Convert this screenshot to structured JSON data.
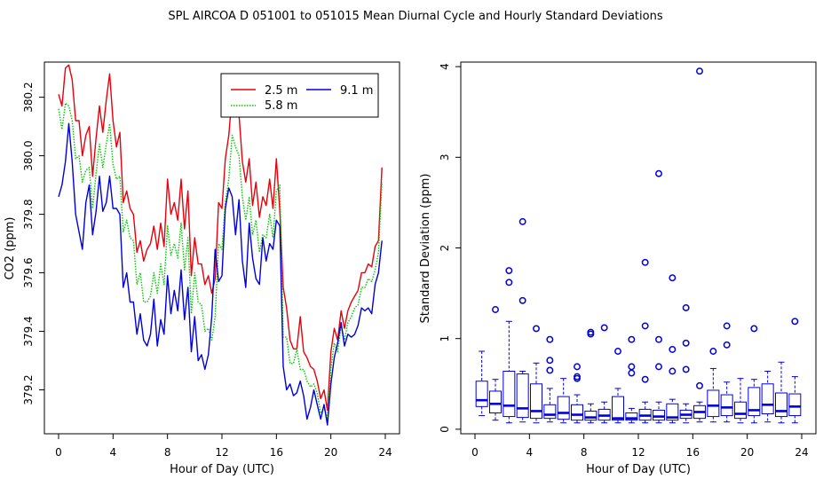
{
  "figure": {
    "title": "SPL   AIRCOA D   051001 to 051015   Mean Diurnal Cycle and Hourly Standard Deviations"
  },
  "chart_data": [
    {
      "type": "line",
      "xlabel": "Hour of Day (UTC)",
      "ylabel": "CO2 (ppm)",
      "xlim": [
        0,
        24
      ],
      "ylim": [
        379.05,
        380.32
      ],
      "xticks": [
        "0",
        "4",
        "8",
        "12",
        "16",
        "20",
        "24"
      ],
      "yticks": [
        "379.2",
        "379.4",
        "379.6",
        "379.8",
        "380.0",
        "380.2"
      ],
      "legend": {
        "position": "top-right"
      },
      "x": [
        0,
        0.25,
        0.5,
        0.75,
        1,
        1.25,
        1.5,
        1.75,
        2,
        2.25,
        2.5,
        2.75,
        3,
        3.25,
        3.5,
        3.75,
        4,
        4.25,
        4.5,
        4.75,
        5,
        5.25,
        5.5,
        5.75,
        6,
        6.25,
        6.5,
        6.75,
        7,
        7.25,
        7.5,
        7.75,
        8,
        8.25,
        8.5,
        8.75,
        9,
        9.25,
        9.5,
        9.75,
        10,
        10.25,
        10.5,
        10.75,
        11,
        11.25,
        11.5,
        11.75,
        12,
        12.25,
        12.5,
        12.75,
        13,
        13.25,
        13.5,
        13.75,
        14,
        14.25,
        14.5,
        14.75,
        15,
        15.25,
        15.5,
        15.75,
        16,
        16.25,
        16.5,
        16.75,
        17,
        17.25,
        17.5,
        17.75,
        18,
        18.25,
        18.5,
        18.75,
        19,
        19.25,
        19.5,
        19.75,
        20,
        20.25,
        20.5,
        20.75,
        21,
        21.25,
        21.5,
        21.75,
        22,
        22.25,
        22.5,
        22.75,
        23,
        23.25,
        23.5,
        23.75
      ],
      "series": [
        {
          "name": "2.5 m",
          "color": "#e8000b",
          "dash": "solid",
          "values": [
            380.21,
            380.17,
            380.3,
            380.31,
            380.26,
            380.12,
            380.12,
            380.0,
            380.07,
            380.1,
            379.93,
            380.06,
            380.17,
            380.08,
            380.19,
            380.28,
            380.12,
            380.03,
            380.08,
            379.84,
            379.88,
            379.82,
            379.8,
            379.67,
            379.71,
            379.64,
            379.68,
            379.7,
            379.76,
            379.68,
            379.77,
            379.69,
            379.92,
            379.8,
            379.84,
            379.78,
            379.92,
            379.75,
            379.88,
            379.59,
            379.72,
            379.63,
            379.63,
            379.56,
            379.59,
            379.53,
            379.58,
            379.84,
            379.82,
            379.99,
            380.07,
            380.21,
            380.16,
            380.14,
            379.98,
            379.91,
            379.99,
            379.83,
            379.91,
            379.79,
            379.86,
            379.83,
            379.92,
            379.82,
            379.99,
            379.81,
            379.55,
            379.48,
            379.37,
            379.34,
            379.34,
            379.45,
            379.33,
            379.31,
            379.28,
            379.27,
            379.23,
            379.17,
            379.2,
            379.13,
            379.33,
            379.41,
            379.37,
            379.47,
            379.41,
            379.47,
            379.5,
            379.52,
            379.54,
            379.6,
            379.6,
            379.63,
            379.62,
            379.69,
            379.71,
            379.96
          ]
        },
        {
          "name": "5.8 m",
          "color": "#00c800",
          "dash": "dotted",
          "values": [
            380.16,
            380.09,
            380.18,
            380.17,
            380.12,
            379.99,
            380.0,
            379.91,
            379.95,
            379.96,
            379.82,
            379.94,
            380.04,
            379.96,
            380.04,
            380.11,
            379.97,
            379.92,
            379.93,
            379.74,
            379.78,
            379.72,
            379.71,
            379.56,
            379.6,
            379.5,
            379.5,
            379.52,
            379.6,
            379.53,
            379.63,
            379.56,
            379.76,
            379.66,
            379.7,
            379.65,
            379.77,
            379.61,
            379.72,
            379.46,
            379.6,
            379.5,
            379.49,
            379.4,
            379.41,
            379.37,
            379.45,
            379.7,
            379.68,
            379.84,
            379.92,
            380.07,
            380.03,
            380.0,
            379.86,
            379.78,
            379.86,
            379.73,
            379.78,
            379.67,
            379.73,
            379.72,
            379.8,
            379.72,
            379.88,
            379.9,
            379.38,
            379.38,
            379.29,
            379.29,
            379.34,
            379.27,
            379.27,
            379.23,
            379.21,
            379.22,
            379.19,
            379.12,
            379.14,
            379.1,
            379.27,
            379.36,
            379.33,
            379.42,
            379.37,
            379.43,
            379.45,
            379.48,
            379.49,
            379.55,
            379.55,
            379.58,
            379.57,
            379.61,
            379.67,
            379.91
          ]
        },
        {
          "name": "9.1 m",
          "color": "#0000dc",
          "dash": "solid",
          "values": [
            379.86,
            379.9,
            379.98,
            380.11,
            379.98,
            379.8,
            379.74,
            379.68,
            379.84,
            379.9,
            379.73,
            379.81,
            379.93,
            379.81,
            379.84,
            379.93,
            379.82,
            379.82,
            379.8,
            379.55,
            379.6,
            379.5,
            379.5,
            379.39,
            379.46,
            379.37,
            379.35,
            379.39,
            379.51,
            379.35,
            379.44,
            379.39,
            379.59,
            379.46,
            379.54,
            379.47,
            379.61,
            379.44,
            379.55,
            379.33,
            379.45,
            379.3,
            379.32,
            379.27,
            379.32,
            379.45,
            379.68,
            379.57,
            379.59,
            379.82,
            379.89,
            379.86,
            379.73,
            379.85,
            379.64,
            379.55,
            379.77,
            379.65,
            379.58,
            379.56,
            379.72,
            379.64,
            379.7,
            379.68,
            379.78,
            379.76,
            379.28,
            379.2,
            379.22,
            379.18,
            379.19,
            379.23,
            379.18,
            379.1,
            379.14,
            379.2,
            379.15,
            379.1,
            379.15,
            379.08,
            379.22,
            379.31,
            379.36,
            379.43,
            379.35,
            379.39,
            379.38,
            379.39,
            379.42,
            379.48,
            379.47,
            379.48,
            379.46,
            379.56,
            379.6,
            379.71
          ]
        }
      ]
    },
    {
      "type": "box",
      "xlabel": "Hour of Day (UTC)",
      "ylabel": "Standard Deviation (ppm)",
      "xlim": [
        0,
        24
      ],
      "ylim": [
        -0.05,
        4.05
      ],
      "xticks": [
        "0",
        "4",
        "8",
        "12",
        "16",
        "20",
        "24"
      ],
      "yticks": [
        "0",
        "1",
        "2",
        "3",
        "4"
      ],
      "color": "#0000dc",
      "boxes": [
        {
          "hour": 0.5,
          "lo": 0.15,
          "q1": 0.25,
          "med": 0.32,
          "q3": 0.53,
          "hi": 0.86,
          "out": []
        },
        {
          "hour": 1.5,
          "lo": 0.1,
          "q1": 0.18,
          "med": 0.28,
          "q3": 0.42,
          "hi": 0.55,
          "out": [
            1.32
          ]
        },
        {
          "hour": 2.5,
          "lo": 0.07,
          "q1": 0.14,
          "med": 0.26,
          "q3": 0.64,
          "hi": 1.19,
          "out": [
            1.62,
            1.75
          ]
        },
        {
          "hour": 3.5,
          "lo": 0.08,
          "q1": 0.13,
          "med": 0.23,
          "q3": 0.61,
          "hi": 0.64,
          "out": [
            1.42,
            2.29
          ]
        },
        {
          "hour": 4.5,
          "lo": 0.07,
          "q1": 0.12,
          "med": 0.2,
          "q3": 0.5,
          "hi": 0.73,
          "out": [
            1.11
          ]
        },
        {
          "hour": 5.5,
          "lo": 0.08,
          "q1": 0.12,
          "med": 0.16,
          "q3": 0.27,
          "hi": 0.45,
          "out": [
            0.65,
            0.76,
            0.99
          ]
        },
        {
          "hour": 6.5,
          "lo": 0.07,
          "q1": 0.11,
          "med": 0.18,
          "q3": 0.36,
          "hi": 0.56,
          "out": []
        },
        {
          "hour": 7.5,
          "lo": 0.07,
          "q1": 0.1,
          "med": 0.16,
          "q3": 0.27,
          "hi": 0.38,
          "out": [
            0.56,
            0.58,
            0.69
          ]
        },
        {
          "hour": 8.5,
          "lo": 0.07,
          "q1": 0.1,
          "med": 0.13,
          "q3": 0.2,
          "hi": 0.28,
          "out": [
            1.05,
            1.07
          ]
        },
        {
          "hour": 9.5,
          "lo": 0.07,
          "q1": 0.1,
          "med": 0.15,
          "q3": 0.22,
          "hi": 0.3,
          "out": [
            1.12
          ]
        },
        {
          "hour": 10.5,
          "lo": 0.07,
          "q1": 0.1,
          "med": 0.12,
          "q3": 0.36,
          "hi": 0.45,
          "out": [
            0.86
          ]
        },
        {
          "hour": 11.5,
          "lo": 0.07,
          "q1": 0.1,
          "med": 0.12,
          "q3": 0.18,
          "hi": 0.23,
          "out": [
            0.62,
            0.69,
            0.99
          ]
        },
        {
          "hour": 12.5,
          "lo": 0.07,
          "q1": 0.1,
          "med": 0.15,
          "q3": 0.22,
          "hi": 0.3,
          "out": [
            0.55,
            1.14,
            1.84
          ]
        },
        {
          "hour": 13.5,
          "lo": 0.07,
          "q1": 0.1,
          "med": 0.14,
          "q3": 0.21,
          "hi": 0.3,
          "out": [
            0.69,
            0.99,
            2.82
          ]
        },
        {
          "hour": 14.5,
          "lo": 0.07,
          "q1": 0.1,
          "med": 0.13,
          "q3": 0.28,
          "hi": 0.33,
          "out": [
            0.64,
            0.88,
            1.67
          ]
        },
        {
          "hour": 15.5,
          "lo": 0.07,
          "q1": 0.12,
          "med": 0.16,
          "q3": 0.21,
          "hi": 0.28,
          "out": [
            0.66,
            0.95,
            1.34
          ]
        },
        {
          "hour": 16.5,
          "lo": 0.08,
          "q1": 0.12,
          "med": 0.19,
          "q3": 0.26,
          "hi": 0.3,
          "out": [
            0.48,
            3.95
          ]
        },
        {
          "hour": 17.5,
          "lo": 0.08,
          "q1": 0.14,
          "med": 0.26,
          "q3": 0.43,
          "hi": 0.67,
          "out": [
            0.86
          ]
        },
        {
          "hour": 18.5,
          "lo": 0.08,
          "q1": 0.15,
          "med": 0.24,
          "q3": 0.38,
          "hi": 0.52,
          "out": [
            0.93,
            1.14
          ]
        },
        {
          "hour": 19.5,
          "lo": 0.07,
          "q1": 0.12,
          "med": 0.17,
          "q3": 0.3,
          "hi": 0.56,
          "out": []
        },
        {
          "hour": 20.5,
          "lo": 0.07,
          "q1": 0.15,
          "med": 0.21,
          "q3": 0.46,
          "hi": 0.55,
          "out": [
            1.11
          ]
        },
        {
          "hour": 21.5,
          "lo": 0.08,
          "q1": 0.17,
          "med": 0.27,
          "q3": 0.5,
          "hi": 0.64,
          "out": []
        },
        {
          "hour": 22.5,
          "lo": 0.07,
          "q1": 0.14,
          "med": 0.2,
          "q3": 0.4,
          "hi": 0.74,
          "out": []
        },
        {
          "hour": 23.5,
          "lo": 0.07,
          "q1": 0.15,
          "med": 0.25,
          "q3": 0.39,
          "hi": 0.58,
          "out": [
            1.19
          ]
        }
      ]
    }
  ]
}
